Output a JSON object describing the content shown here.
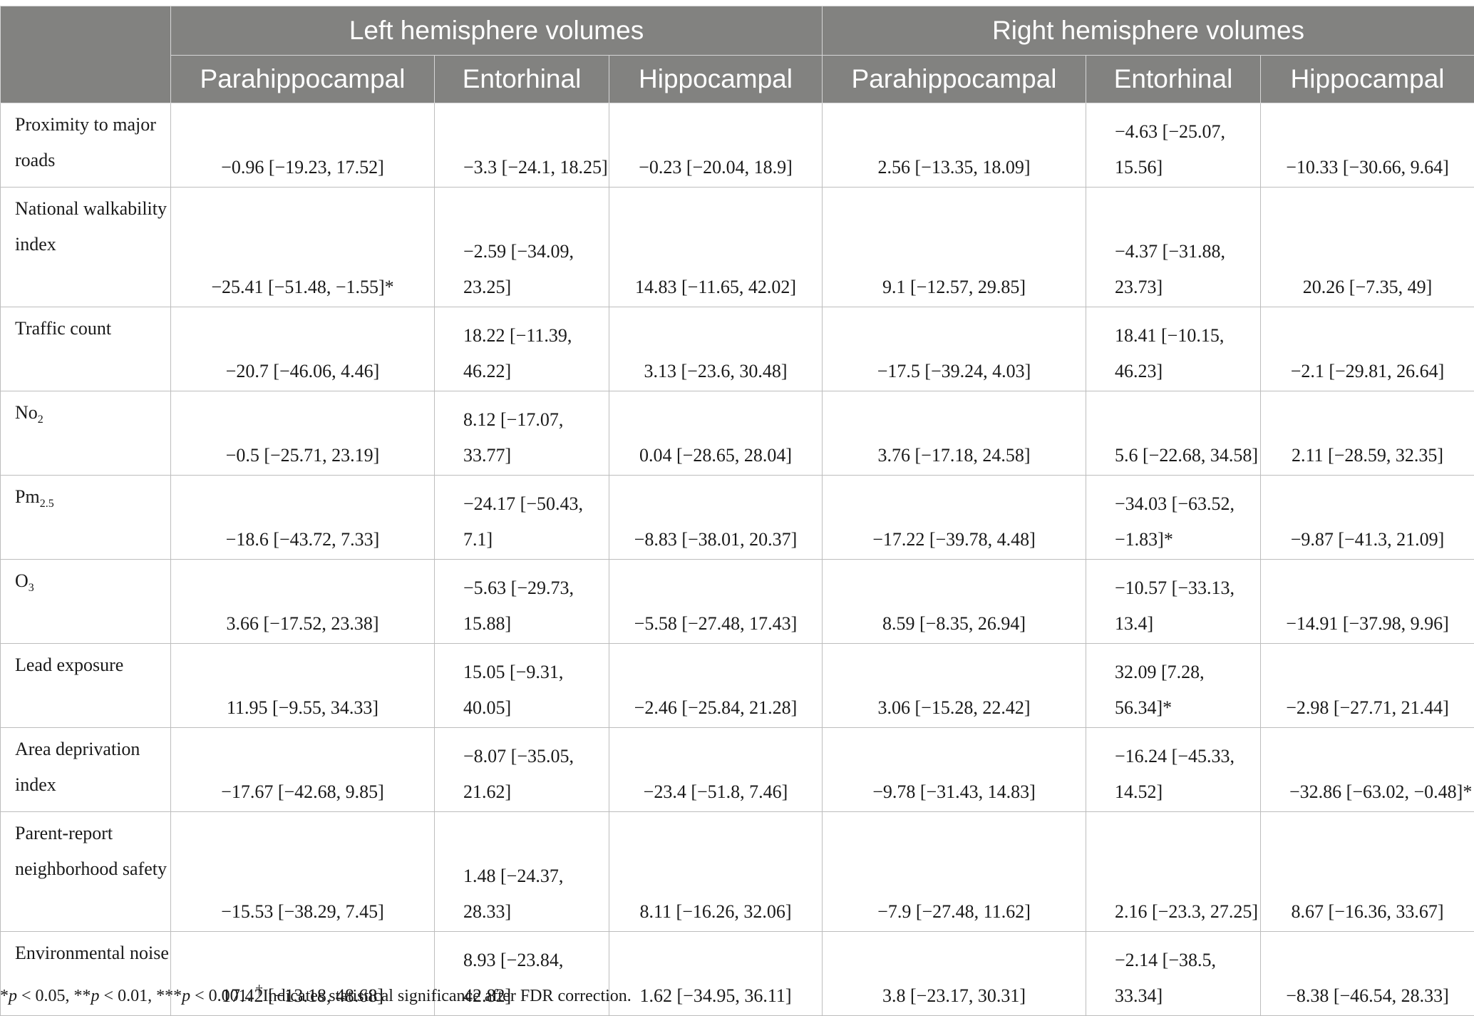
{
  "header": {
    "groups": [
      "Left hemisphere volumes",
      "Right hemisphere volumes"
    ],
    "columns": [
      "Parahippocampal",
      "Entorhinal",
      "Hippocampal",
      "Parahippocampal",
      "Entorhinal",
      "Hippocampal"
    ]
  },
  "rows": [
    {
      "label": "Proximity to major roads",
      "cells": [
        "−0.96 [−19.23, 17.52]",
        "−3.3 [−24.1, 18.25]",
        "−0.23 [−20.04, 18.9]",
        "2.56 [−13.35, 18.09]",
        "−4.63 [−25.07, 15.56]",
        "−10.33 [−30.66, 9.64]"
      ]
    },
    {
      "label": "National walkability index",
      "cells": [
        "−25.41 [−51.48, −1.55]*",
        "−2.59 [−34.09, 23.25]",
        "14.83 [−11.65, 42.02]",
        "9.1 [−12.57, 29.85]",
        "−4.37 [−31.88, 23.73]",
        "20.26 [−7.35, 49]"
      ]
    },
    {
      "label": "Traffic count",
      "cells": [
        "−20.7 [−46.06, 4.46]",
        "18.22 [−11.39, 46.22]",
        "3.13 [−23.6, 30.48]",
        "−17.5 [−39.24, 4.03]",
        "18.41 [−10.15, 46.23]",
        "−2.1 [−29.81, 26.64]"
      ]
    },
    {
      "label_main": "No",
      "label_sub": "2",
      "cells": [
        "−0.5 [−25.71, 23.19]",
        "8.12 [−17.07, 33.77]",
        "0.04 [−28.65, 28.04]",
        "3.76 [−17.18, 24.58]",
        "5.6 [−22.68, 34.58]",
        "2.11 [−28.59, 32.35]"
      ]
    },
    {
      "label_main": "Pm",
      "label_sub": "2.5",
      "cells": [
        "−18.6 [−43.72, 7.33]",
        "−24.17 [−50.43, 7.1]",
        "−8.83 [−38.01, 20.37]",
        "−17.22 [−39.78, 4.48]",
        "−34.03 [−63.52, −1.83]*",
        "−9.87 [−41.3, 21.09]"
      ]
    },
    {
      "label_main": "O",
      "label_sub": "3",
      "cells": [
        "3.66 [−17.52, 23.38]",
        "−5.63 [−29.73, 15.88]",
        "−5.58 [−27.48, 17.43]",
        "8.59 [−8.35, 26.94]",
        "−10.57 [−33.13, 13.4]",
        "−14.91 [−37.98, 9.96]"
      ]
    },
    {
      "label": "Lead exposure",
      "cells": [
        "11.95 [−9.55, 34.33]",
        "15.05 [−9.31, 40.05]",
        "−2.46 [−25.84, 21.28]",
        "3.06 [−15.28, 22.42]",
        "32.09 [7.28, 56.34]*",
        "−2.98 [−27.71, 21.44]"
      ]
    },
    {
      "label": "Area deprivation index",
      "cells": [
        "−17.67 [−42.68, 9.85]",
        "−8.07 [−35.05, 21.62]",
        "−23.4 [−51.8, 7.46]",
        "−9.78 [−31.43, 14.83]",
        "−16.24 [−45.33, 14.52]",
        "−32.86 [−63.02, −0.48]*"
      ]
    },
    {
      "label": "Parent-report neighborhood safety",
      "cells": [
        "−15.53 [−38.29, 7.45]",
        "1.48 [−24.37, 28.33]",
        "8.11 [−16.26, 32.06]",
        "−7.9 [−27.48, 11.62]",
        "2.16 [−23.3, 27.25]",
        "8.67 [−16.36, 33.67]"
      ]
    },
    {
      "label": "Environmental noise",
      "cells": [
        "17.42 [−13.18, 48.68]",
        "8.93 [−23.84, 42.82]",
        "1.62 [−34.95, 36.11]",
        "3.8 [−23.17, 30.31]",
        "−2.14 [−38.5, 33.34]",
        "−8.38 [−46.54, 28.33]"
      ]
    }
  ],
  "footnote": {
    "s1": "*",
    "p1": "p",
    "t1": " < 0.05, **",
    "p2": "p",
    "t2": " < 0.01, ***",
    "p3": "p",
    "t3": " < 0.001. ",
    "dagger": "†",
    "t4": "Indicates statistical significance after FDR correction."
  }
}
